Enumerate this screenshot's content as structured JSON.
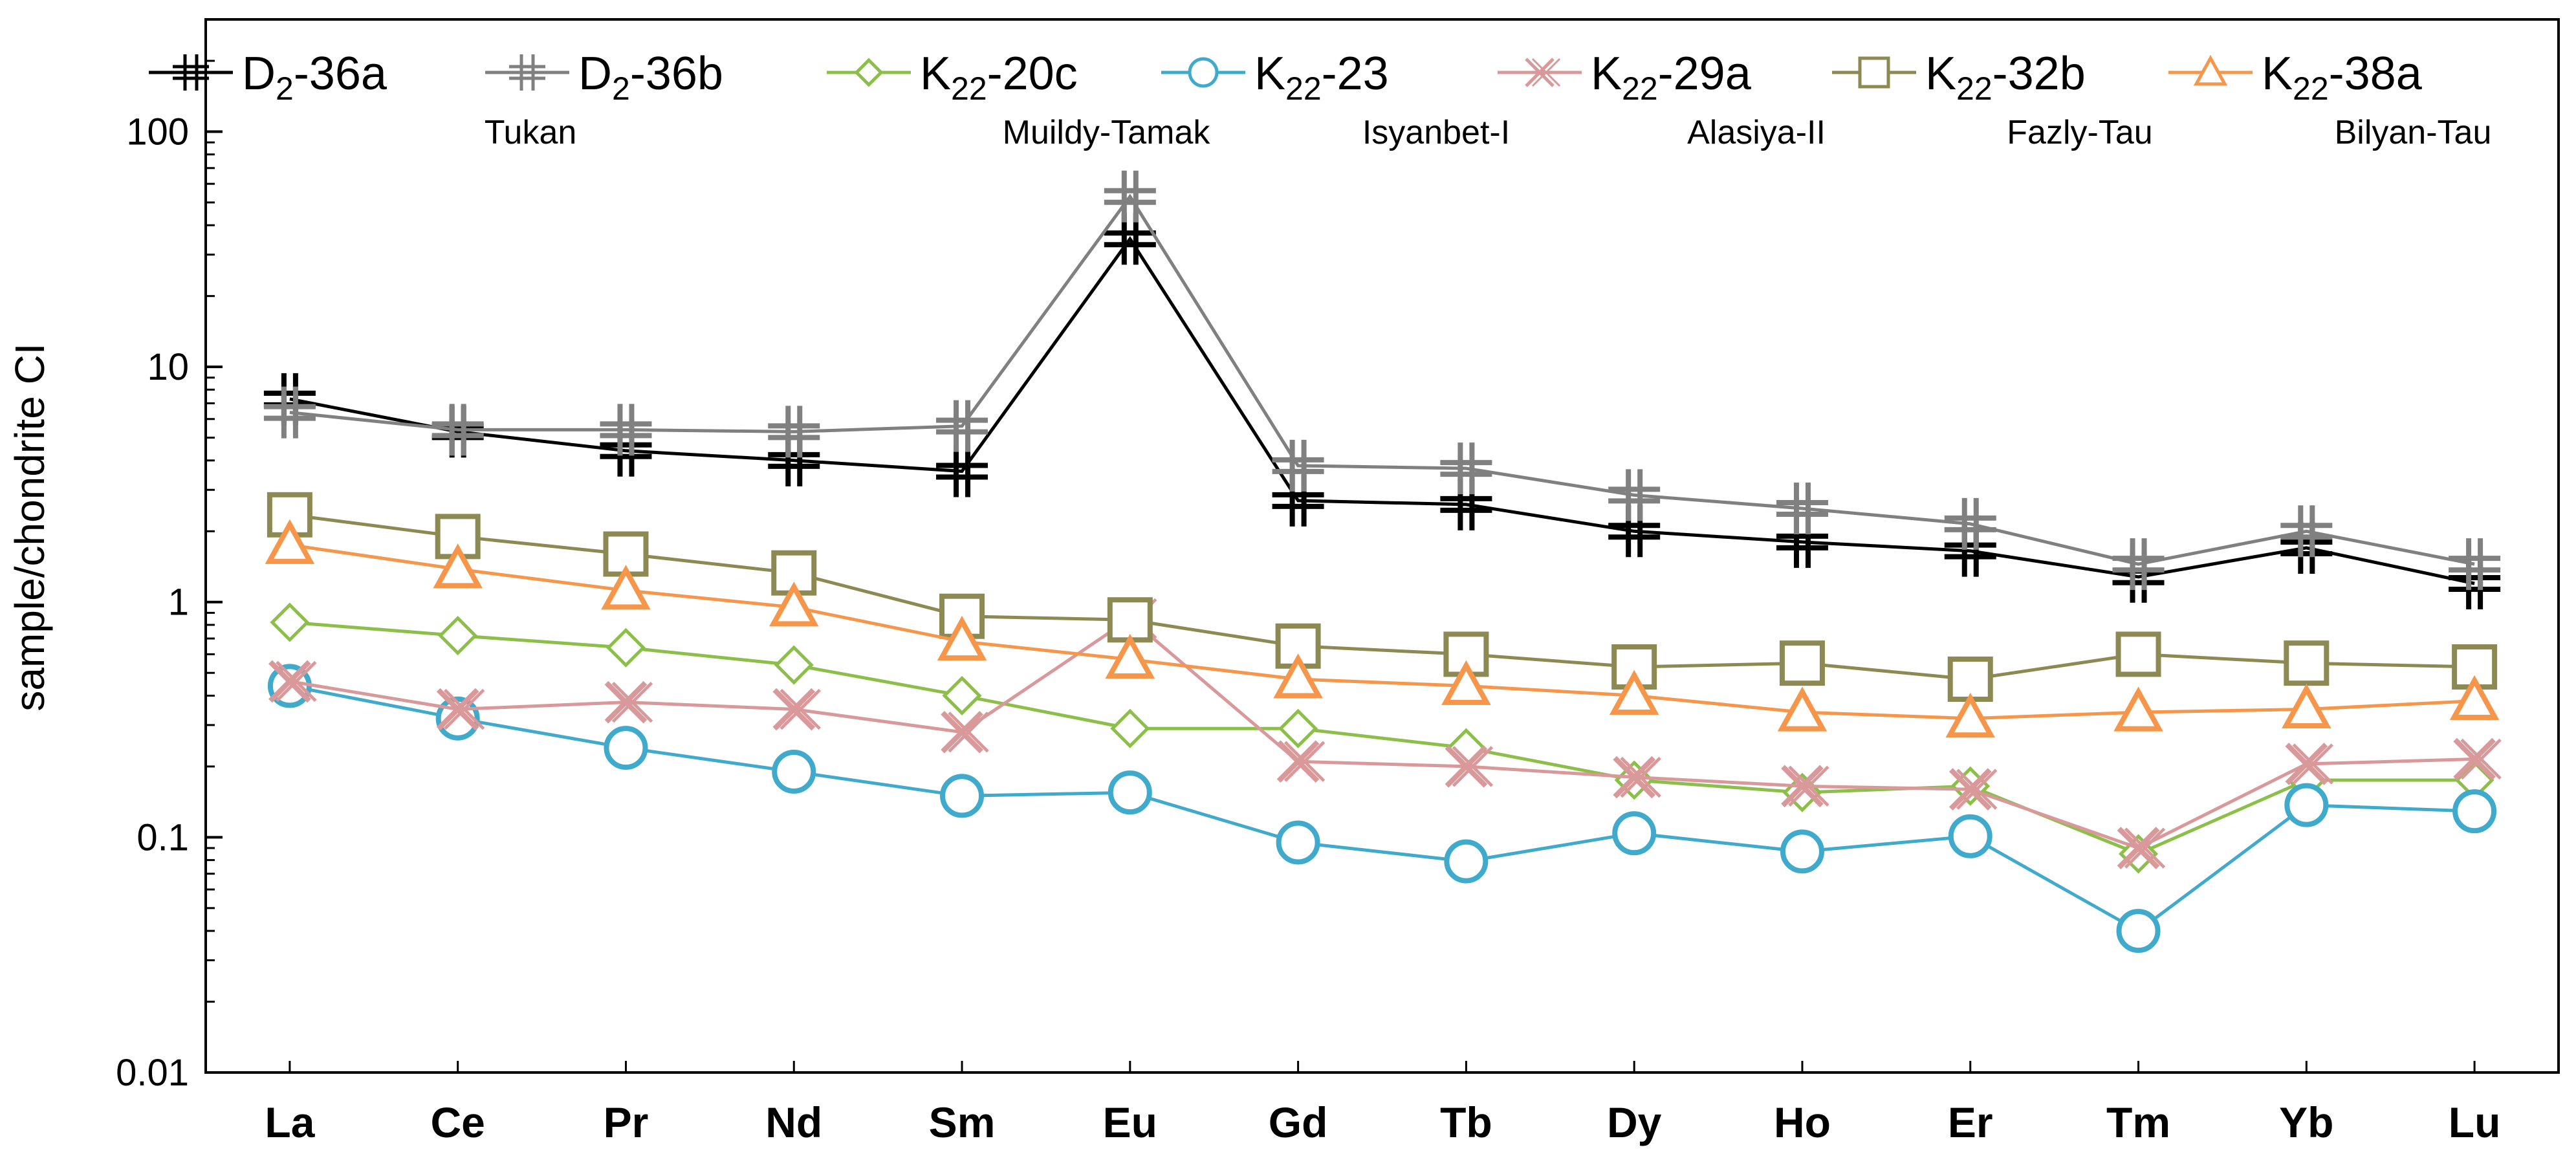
{
  "chart_data": {
    "type": "line",
    "ylabel": "sample/chondrite CI",
    "yscale": "log",
    "ylim": [
      0.01,
      300
    ],
    "yticks": [
      {
        "value": 100,
        "label": "100"
      },
      {
        "value": 10,
        "label": "10"
      },
      {
        "value": 1,
        "label": "1"
      },
      {
        "value": 0.1,
        "label": "0.1"
      },
      {
        "value": 0.01,
        "label": "0.01"
      }
    ],
    "categories": [
      "La",
      "Ce",
      "Pr",
      "Nd",
      "Sm",
      "Eu",
      "Gd",
      "Tb",
      "Dy",
      "Ho",
      "Er",
      "Tm",
      "Yb",
      "Lu"
    ],
    "series": [
      {
        "name": "D2-36a",
        "label_main": "D",
        "label_sub": "2",
        "label_rest": "-36a",
        "locality": "Tukan",
        "marker": "double-cross",
        "color": "#000000",
        "values": [
          7.3,
          5.3,
          4.4,
          4.0,
          3.6,
          35,
          2.7,
          2.6,
          2.0,
          1.8,
          1.65,
          1.28,
          1.7,
          1.2
        ]
      },
      {
        "name": "D2-36b",
        "label_main": "D",
        "label_sub": "2",
        "label_rest": "-36b",
        "locality": "",
        "marker": "double-cross",
        "color": "#808080",
        "values": [
          6.4,
          5.4,
          5.4,
          5.3,
          5.6,
          53,
          3.8,
          3.7,
          2.85,
          2.5,
          2.15,
          1.45,
          2.0,
          1.45
        ]
      },
      {
        "name": "K22-20c",
        "label_main": "K",
        "label_sub": "22",
        "label_rest": "-20c",
        "locality": "Muildy-Tamak",
        "marker": "diamond",
        "color": "#8cbf4a",
        "values": [
          0.82,
          0.72,
          0.64,
          0.54,
          0.4,
          0.29,
          0.29,
          0.24,
          0.175,
          0.155,
          0.165,
          0.085,
          0.175,
          0.175
        ]
      },
      {
        "name": "K22-23",
        "label_main": "K",
        "label_sub": "22",
        "label_rest": "-23",
        "locality": "Isyanbet-I",
        "marker": "circle",
        "color": "#3faacb",
        "values": [
          0.44,
          0.32,
          0.24,
          0.19,
          0.15,
          0.155,
          0.095,
          0.079,
          0.104,
          0.087,
          0.101,
          0.04,
          0.137,
          0.129
        ]
      },
      {
        "name": "K22-29a",
        "label_main": "K",
        "label_sub": "22",
        "label_rest": "-29a",
        "locality": "Alasiya-II",
        "marker": "x",
        "color": "#d9999a",
        "values": [
          0.46,
          0.35,
          0.375,
          0.35,
          0.28,
          0.85,
          0.21,
          0.2,
          0.18,
          0.165,
          0.16,
          0.09,
          0.205,
          0.215
        ]
      },
      {
        "name": "K22-32b",
        "label_main": "K",
        "label_sub": "22",
        "label_rest": "-32b",
        "locality": "Fazly-Tau",
        "marker": "square",
        "color": "#8c8a52",
        "values": [
          2.35,
          1.9,
          1.6,
          1.33,
          0.87,
          0.84,
          0.65,
          0.6,
          0.53,
          0.55,
          0.47,
          0.6,
          0.55,
          0.53
        ]
      },
      {
        "name": "K22-38a",
        "label_main": "K",
        "label_sub": "22",
        "label_rest": "-38a",
        "locality": "Bilyan-Tau",
        "marker": "triangle",
        "color": "#f5964a",
        "values": [
          1.75,
          1.38,
          1.12,
          0.95,
          0.68,
          0.57,
          0.47,
          0.44,
          0.4,
          0.34,
          0.32,
          0.34,
          0.35,
          0.38
        ]
      }
    ]
  }
}
